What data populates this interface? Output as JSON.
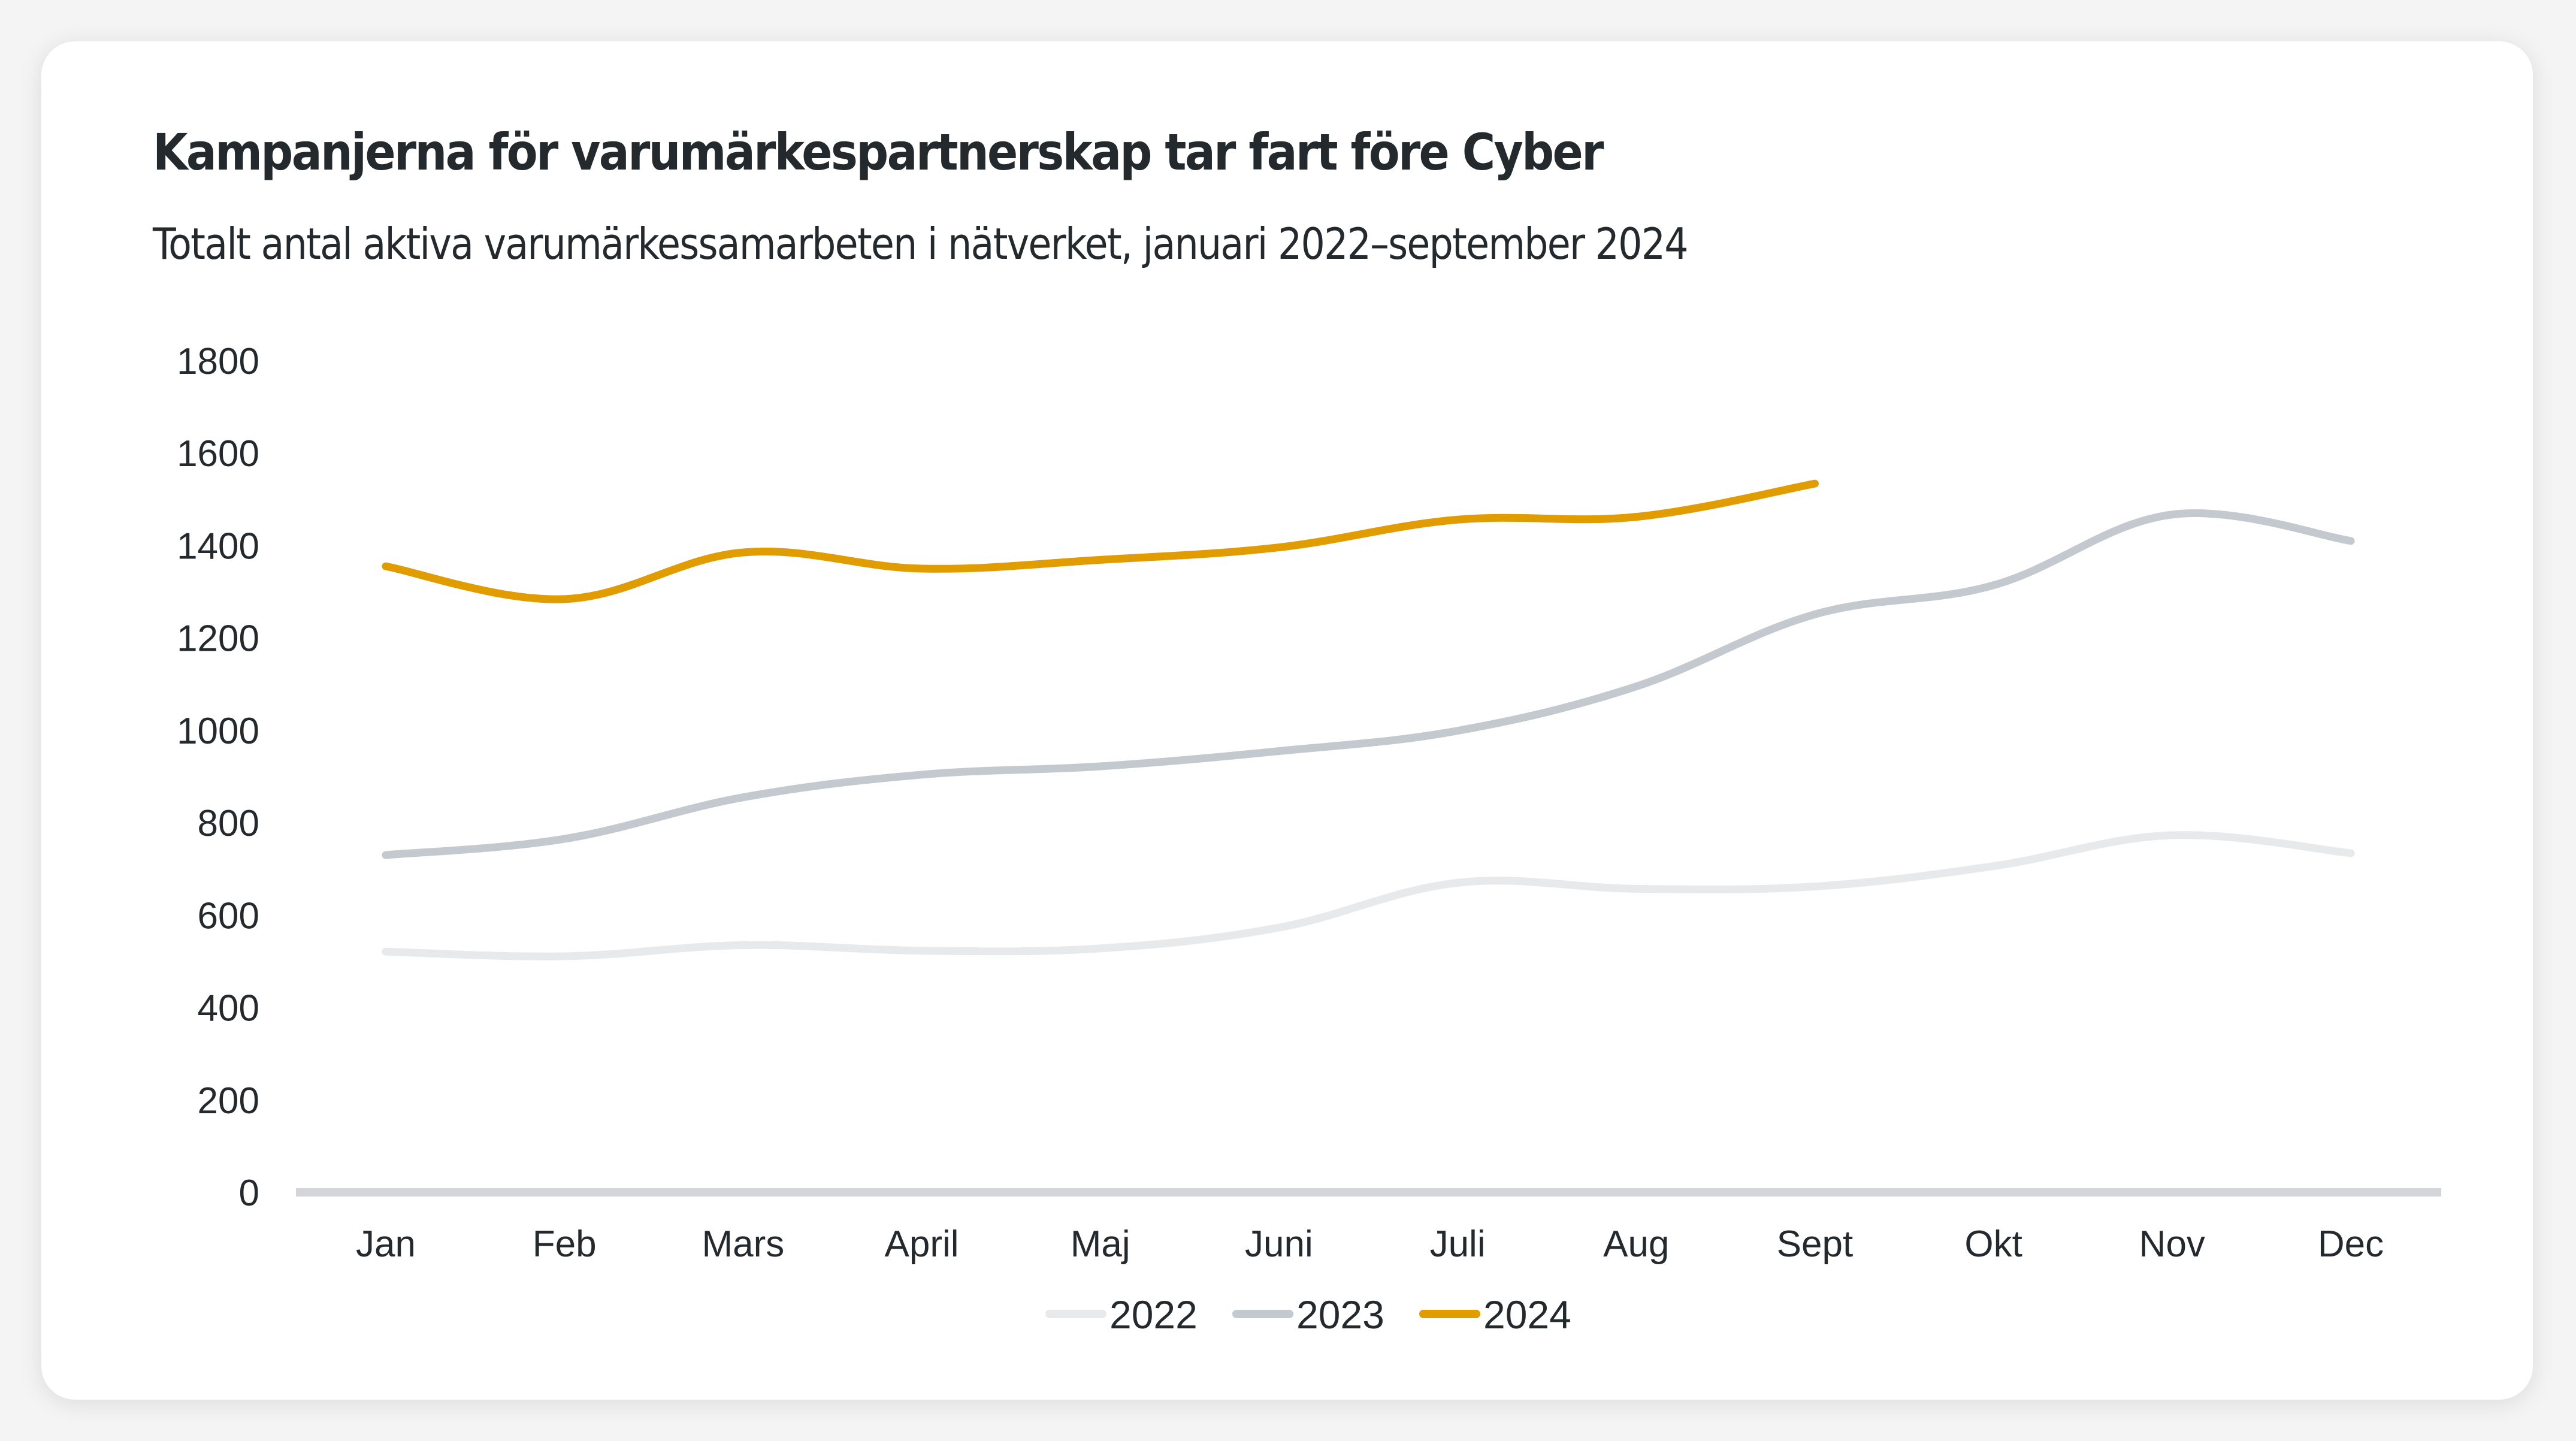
{
  "header": {
    "title": "Kampanjerna för varumärkespartnerskap tar fart före Cyber",
    "subtitle": "Totalt antal aktiva varumärkessamarbeten i nätverket, januari 2022–september 2024"
  },
  "chart_data": {
    "type": "line",
    "title": "Kampanjerna för varumärkespartnerskap tar fart före Cyber",
    "subtitle": "Totalt antal aktiva varumärkessamarbeten i nätverket, januari 2022–september 2024",
    "xlabel": "",
    "ylabel": "",
    "categories": [
      "Jan",
      "Feb",
      "Mars",
      "April",
      "Maj",
      "Juni",
      "Juli",
      "Aug",
      "Sept",
      "Okt",
      "Nov",
      "Dec"
    ],
    "yticks": [
      0,
      200,
      400,
      600,
      800,
      1000,
      1200,
      1400,
      1600,
      1800
    ],
    "ylim": [
      0,
      1800
    ],
    "grid": false,
    "legend_position": "bottom-center",
    "series": [
      {
        "name": "2022",
        "color": "#e8e9eb",
        "values": [
          521,
          511,
          535,
          523,
          528,
          573,
          670,
          657,
          662,
          706,
          773,
          734
        ]
      },
      {
        "name": "2023",
        "color": "#c3c9ce",
        "values": [
          730,
          765,
          855,
          904,
          922,
          955,
          999,
          1095,
          1251,
          1314,
          1467,
          1410
        ]
      },
      {
        "name": "2024",
        "color": "#e09c00",
        "values": [
          1355,
          1284,
          1385,
          1350,
          1369,
          1396,
          1456,
          1462,
          1534,
          null,
          null,
          null
        ]
      }
    ],
    "axis_color": "#d3d5d8"
  }
}
